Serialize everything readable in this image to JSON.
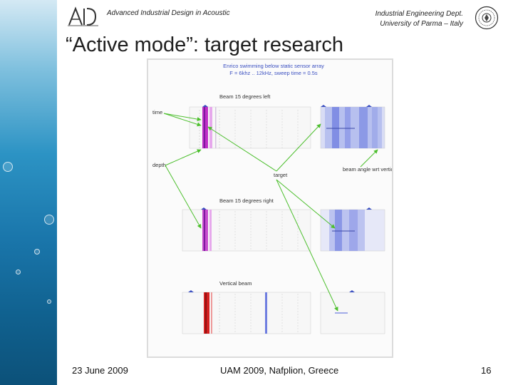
{
  "header": {
    "left_text": "Advanced Industrial Design in Acoustic",
    "right_line1": "Industrial Engineering Dept.",
    "right_line2": "University of Parma – Italy"
  },
  "slide": {
    "title": "“Active mode”: target research"
  },
  "figure": {
    "caption_line1": "Enrico swimming below static sensor array",
    "caption_line2": "F = 6khz .. 12kHz, sweep time = 0.5s",
    "panel1_title": "Beam 15 degrees left",
    "panel2_title": "Beam 15 degrees right",
    "panel3_title": "Vertical beam",
    "label_time": "time",
    "label_depth": "depth",
    "label_target": "target",
    "label_beam_angle": "beam angle wrt vertical"
  },
  "footer": {
    "date": "23 June 2009",
    "event": "UAM 2009, Nafplion, Greece",
    "page": "16"
  },
  "colors": {
    "arrow": "#4dbf2e",
    "echo_magenta": "#c030c8",
    "echo_red": "#d42020",
    "sonar_blue": "#6f7ee0"
  }
}
